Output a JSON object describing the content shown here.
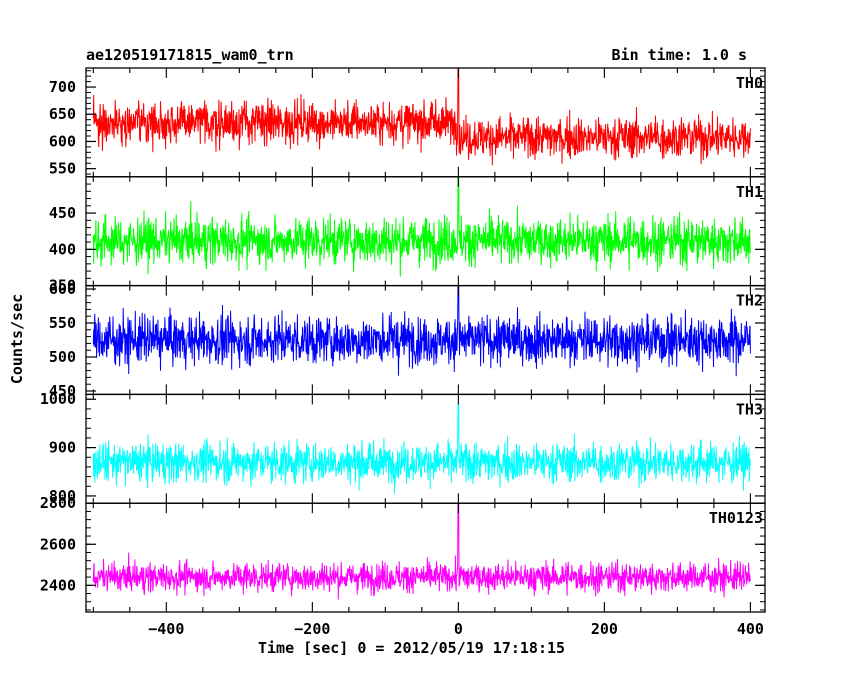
{
  "header": {
    "source_name": "ae120519171815_wam0_trn",
    "bin_time": "Bin time: 1.0 s"
  },
  "chart_data": {
    "type": "line",
    "ylabel": "Counts/sec",
    "xlabel": "Time [sec] 0 = 2012/05/19 17:18:15",
    "xlim": [
      -510,
      420
    ],
    "x_range_data": [
      -500,
      400
    ],
    "x_ticks": [
      -400,
      -200,
      0,
      200,
      400
    ],
    "x_tick_labels": [
      "−400",
      "−200",
      "0",
      "200",
      "400"
    ],
    "panels": [
      {
        "label": "TH0",
        "color": "#ff0000",
        "ylim": [
          535,
          735
        ],
        "y_ticks": [
          550,
          600,
          650,
          700
        ],
        "segments": [
          {
            "x_from": -500,
            "x_to": 0,
            "mean": 635,
            "sigma": 30
          },
          {
            "x_from": 0,
            "x_to": 400,
            "mean": 608,
            "sigma": 30
          }
        ],
        "peaks": [
          {
            "x": 0,
            "y": 740
          }
        ]
      },
      {
        "label": "TH1",
        "color": "#00ff00",
        "ylim": [
          350,
          500
        ],
        "y_ticks": [
          350,
          400,
          450
        ],
        "segments": [
          {
            "x_from": -500,
            "x_to": 400,
            "mean": 412,
            "sigma": 25
          }
        ],
        "peaks": [
          {
            "x": 0,
            "y": 500
          }
        ]
      },
      {
        "label": "TH2",
        "color": "#0000ff",
        "ylim": [
          445,
          605
        ],
        "y_ticks": [
          450,
          500,
          550,
          600
        ],
        "segments": [
          {
            "x_from": -500,
            "x_to": 400,
            "mean": 525,
            "sigma": 28
          }
        ],
        "peaks": [
          {
            "x": 0,
            "y": 605
          }
        ]
      },
      {
        "label": "TH3",
        "color": "#00ffff",
        "ylim": [
          785,
          1010
        ],
        "y_ticks": [
          800,
          900,
          1000
        ],
        "segments": [
          {
            "x_from": -500,
            "x_to": 400,
            "mean": 870,
            "sigma": 32
          }
        ],
        "peaks": [
          {
            "x": 0,
            "y": 990
          }
        ]
      },
      {
        "label": "TH0123",
        "color": "#ff00ff",
        "ylim": [
          2270,
          2800
        ],
        "y_ticks": [
          2400,
          2600,
          2800
        ],
        "segments": [
          {
            "x_from": -500,
            "x_to": 400,
            "mean": 2440,
            "sigma": 55
          }
        ],
        "peaks": [
          {
            "x": 0,
            "y": 2800
          }
        ]
      }
    ]
  }
}
